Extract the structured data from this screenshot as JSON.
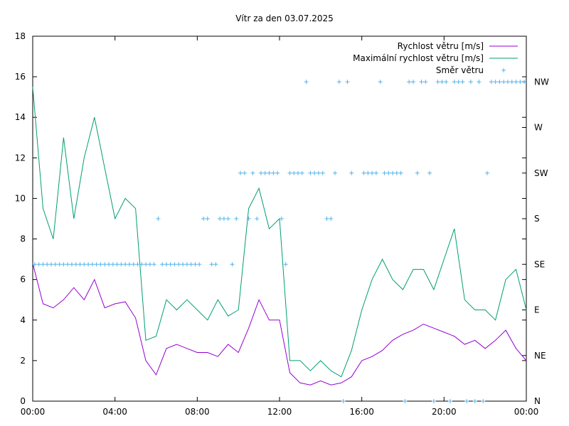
{
  "chart_data": {
    "type": "line",
    "title": "Vítr za den 03.07.2025",
    "xlabel": "",
    "ylabel": "",
    "x_ticks": [
      "00:00",
      "04:00",
      "08:00",
      "12:00",
      "16:00",
      "20:00",
      "00:00"
    ],
    "xlim_hours": [
      0,
      24
    ],
    "ylim": [
      0,
      18
    ],
    "y_ticks": [
      0,
      2,
      4,
      6,
      8,
      10,
      12,
      14,
      16,
      18
    ],
    "y2_ticks": [
      "N",
      "NE",
      "E",
      "SE",
      "S",
      "SW",
      "W",
      "NW"
    ],
    "grid": false,
    "legend_position": "top-right",
    "series": [
      {
        "name": "Rychlost větru [m/s]",
        "color": "#9400d3",
        "style": "line",
        "x_hours": [
          0,
          0.5,
          1,
          1.5,
          2,
          2.5,
          3,
          3.5,
          4,
          4.5,
          5,
          5.5,
          6,
          6.5,
          7,
          7.5,
          8,
          8.5,
          9,
          9.5,
          10,
          10.5,
          11,
          11.5,
          12,
          12.5,
          13,
          13.5,
          14,
          14.5,
          15,
          15.5,
          16,
          16.5,
          17,
          17.5,
          18,
          18.5,
          19,
          19.5,
          20,
          20.5,
          21,
          21.5,
          22,
          22.5,
          23,
          23.5,
          24
        ],
        "values": [
          6.8,
          4.8,
          4.6,
          5.0,
          5.6,
          5.0,
          6.0,
          4.6,
          4.8,
          4.9,
          4.1,
          2.0,
          1.3,
          2.6,
          2.8,
          2.6,
          2.4,
          2.4,
          2.2,
          2.8,
          2.4,
          3.6,
          5.0,
          4.0,
          4.0,
          1.4,
          0.9,
          0.8,
          1.0,
          0.8,
          0.9,
          1.2,
          2.0,
          2.2,
          2.5,
          3.0,
          3.3,
          3.5,
          3.8,
          3.6,
          3.4,
          3.2,
          2.8,
          3.0,
          2.6,
          3.0,
          3.5,
          2.6,
          2.0
        ]
      },
      {
        "name": "Maximální rychlost větru [m/s]",
        "color": "#009e73",
        "style": "line",
        "x_hours": [
          0,
          0.5,
          1,
          1.5,
          2,
          2.5,
          3,
          3.5,
          4,
          4.5,
          5,
          5.5,
          6,
          6.5,
          7,
          7.5,
          8,
          8.5,
          9,
          9.5,
          10,
          10.5,
          11,
          11.5,
          12,
          12.5,
          13,
          13.5,
          14,
          14.5,
          15,
          15.5,
          16,
          16.5,
          17,
          17.5,
          18,
          18.5,
          19,
          19.5,
          20,
          20.5,
          21,
          21.5,
          22,
          22.5,
          23,
          23.5,
          24
        ],
        "values": [
          15.5,
          9.5,
          8.0,
          13.0,
          9.0,
          12.0,
          14.0,
          11.5,
          9.0,
          10.0,
          9.5,
          3.0,
          3.2,
          5.0,
          4.5,
          5.0,
          4.5,
          4.0,
          5.0,
          4.2,
          4.5,
          9.5,
          10.5,
          8.5,
          9.0,
          2.0,
          2.0,
          1.5,
          2.0,
          1.5,
          1.2,
          2.5,
          4.5,
          6.0,
          7.0,
          6.0,
          5.5,
          6.5,
          6.5,
          5.5,
          7.0,
          8.5,
          5.0,
          4.5,
          4.5,
          4.0,
          6.0,
          6.5,
          4.5
        ]
      },
      {
        "name": "Směr větru",
        "color": "#56b4e9",
        "style": "points",
        "x_hours": [
          0.1,
          0.3,
          0.5,
          0.7,
          0.9,
          1.1,
          1.3,
          1.5,
          1.7,
          1.9,
          2.1,
          2.3,
          2.5,
          2.7,
          2.9,
          3.1,
          3.3,
          3.5,
          3.7,
          3.9,
          4.1,
          4.3,
          4.5,
          4.7,
          4.9,
          5.1,
          5.3,
          5.5,
          5.7,
          5.9,
          6.1,
          6.3,
          6.5,
          6.7,
          6.9,
          7.1,
          7.3,
          7.5,
          7.7,
          7.9,
          8.1,
          8.3,
          8.5,
          8.7,
          8.9,
          9.1,
          9.3,
          9.5,
          9.7,
          9.9,
          10.1,
          10.3,
          10.5,
          10.7,
          10.9,
          11.1,
          11.3,
          11.5,
          11.7,
          11.9,
          12.1,
          12.3,
          12.5,
          12.7,
          12.9,
          13.1,
          13.3,
          13.5,
          13.7,
          13.9,
          14.1,
          14.3,
          14.5,
          14.7,
          14.9,
          15.1,
          15.3,
          15.5,
          16.1,
          16.3,
          16.5,
          16.7,
          16.9,
          17.1,
          17.3,
          17.5,
          17.7,
          17.9,
          18.1,
          18.3,
          18.5,
          18.7,
          18.9,
          19.1,
          19.3,
          19.5,
          19.7,
          19.9,
          20.1,
          20.3,
          20.5,
          20.7,
          20.9,
          21.1,
          21.3,
          21.5,
          21.7,
          21.9,
          22.1,
          22.3,
          22.5,
          22.7,
          22.9,
          23.1,
          23.3,
          23.5,
          23.7,
          23.9
        ],
        "values_direction": [
          "SE",
          "SE",
          "SE",
          "SE",
          "SE",
          "SE",
          "SE",
          "SE",
          "SE",
          "SE",
          "SE",
          "SE",
          "SE",
          "SE",
          "SE",
          "SE",
          "SE",
          "SE",
          "SE",
          "SE",
          "SE",
          "SE",
          "SE",
          "SE",
          "SE",
          "SE",
          "SE",
          "SE",
          "SE",
          "SE",
          "S",
          "SE",
          "SE",
          "SE",
          "SE",
          "SE",
          "SE",
          "SE",
          "SE",
          "SE",
          "SE",
          "S",
          "S",
          "SE",
          "SE",
          "S",
          "S",
          "S",
          "SE",
          "S",
          "SW",
          "SW",
          "S",
          "SW",
          "S",
          "SW",
          "SW",
          "SW",
          "SW",
          "SW",
          "S",
          "SE",
          "SW",
          "SW",
          "SW",
          "SW",
          "NW",
          "SW",
          "SW",
          "SW",
          "SW",
          "S",
          "S",
          "SW",
          "NW",
          "N",
          "NW",
          "SW",
          "SW",
          "SW",
          "SW",
          "SW",
          "NW",
          "SW",
          "SW",
          "SW",
          "SW",
          "SW",
          "N",
          "NW",
          "NW",
          "SW",
          "NW",
          "NW",
          "SW",
          "N",
          "NW",
          "NW",
          "NW",
          "N",
          "NW",
          "NW",
          "NW",
          "N",
          "NW",
          "N",
          "NW",
          "N",
          "SW",
          "NW",
          "NW",
          "NW",
          "NW",
          "NW",
          "NW",
          "NW",
          "NW",
          "NW"
        ]
      }
    ]
  }
}
